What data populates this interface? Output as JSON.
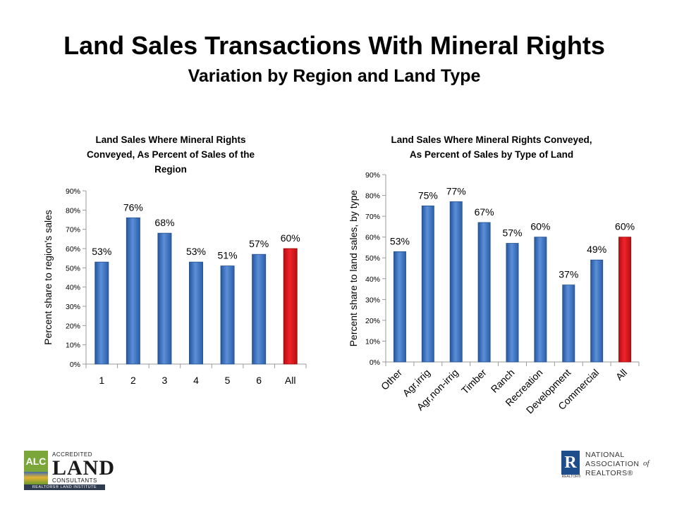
{
  "slide": {
    "title": "Land Sales Transactions With Mineral Rights",
    "subtitle": "Variation by Region and Land Type"
  },
  "colors": {
    "bar_blue": "#3c72c0",
    "bar_red": "#d9141b",
    "gridline": "#cfcfcf"
  },
  "chart_data": [
    {
      "type": "bar",
      "title_lines": [
        "Land Sales Where Mineral Rights",
        "Conveyed,  As Percent of Sales of the",
        "Region"
      ],
      "ylabel": "Percent share to region's sales",
      "xlabel": "",
      "categories": [
        "1",
        "2",
        "3",
        "4",
        "5",
        "6",
        "All"
      ],
      "values": [
        53,
        76,
        68,
        53,
        51,
        57,
        60
      ],
      "data_labels": [
        "53%",
        "76%",
        "68%",
        "53%",
        "51%",
        "57%",
        "60%"
      ],
      "highlight_index": 6,
      "ylim": [
        0,
        90
      ],
      "yticks": [
        "0%",
        "10%",
        "20%",
        "30%",
        "40%",
        "50%",
        "60%",
        "70%",
        "80%",
        "90%"
      ],
      "grid": false,
      "legend": "none"
    },
    {
      "type": "bar",
      "title_lines": [
        "Land Sales Where Mineral Rights Conveyed,",
        "As Percent of Sales by Type of Land"
      ],
      "ylabel": "Percent share to land sales, by type",
      "xlabel": "",
      "categories": [
        "Other",
        "Agr,irrig",
        "Agr,non-irrig",
        "Timber",
        "Ranch",
        "Recreation",
        "Development",
        "Commercial",
        "All"
      ],
      "values": [
        53,
        75,
        77,
        67,
        57,
        60,
        37,
        49,
        60
      ],
      "data_labels": [
        "53%",
        "75%",
        "77%",
        "67%",
        "57%",
        "60%",
        "37%",
        "49%",
        "60%"
      ],
      "highlight_index": 8,
      "ylim": [
        0,
        90
      ],
      "yticks": [
        "0%",
        "10%",
        "20%",
        "30%",
        "40%",
        "50%",
        "60%",
        "70%",
        "80%",
        "90%"
      ],
      "grid": false,
      "legend": "none"
    }
  ],
  "logos": {
    "left": {
      "badge": "ALC",
      "top_text": "ACCREDITED",
      "main_text": "LAND",
      "bottom_text": "CONSULTANTS",
      "bar_text": "REALTORS® LAND INSTITUTE"
    },
    "right": {
      "mark": "R",
      "mark_caption": "REALTOR®",
      "line1": "NATIONAL",
      "line2": "ASSOCIATION",
      "of": "of",
      "line3": "REALTORS®"
    }
  }
}
